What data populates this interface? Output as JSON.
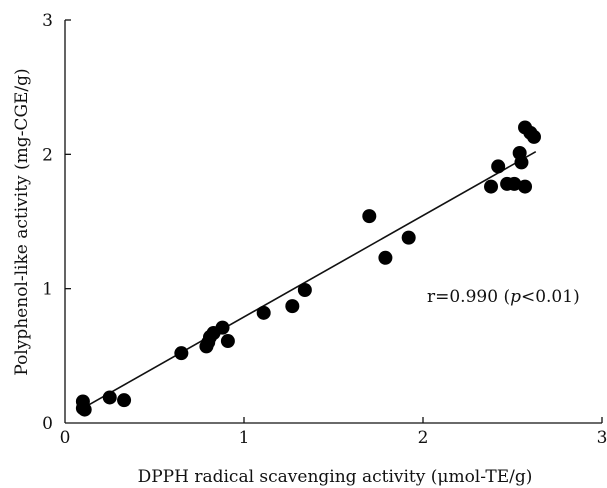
{
  "chart_data": {
    "type": "scatter",
    "xlabel": "DPPH radical scavenging activity (μmol-TE/g)",
    "ylabel": "Polyphenol-like activity (mg-CGE/g)",
    "xlim": [
      0,
      3
    ],
    "ylim": [
      0,
      3
    ],
    "xticks": [
      "0",
      "1",
      "2",
      "3"
    ],
    "yticks": [
      "0",
      "1",
      "2",
      "3"
    ],
    "grid": false,
    "annotation": {
      "prefix": "r=0.990 (",
      "p": "p",
      "suffix": "<0.01)"
    },
    "trendline": {
      "x": [
        0.1,
        2.63
      ],
      "y": [
        0.11,
        2.02
      ]
    },
    "points": [
      {
        "x": 0.1,
        "y": 0.16
      },
      {
        "x": 0.1,
        "y": 0.11
      },
      {
        "x": 0.11,
        "y": 0.1
      },
      {
        "x": 0.25,
        "y": 0.19
      },
      {
        "x": 0.33,
        "y": 0.17
      },
      {
        "x": 0.65,
        "y": 0.52
      },
      {
        "x": 0.79,
        "y": 0.57
      },
      {
        "x": 0.8,
        "y": 0.6
      },
      {
        "x": 0.81,
        "y": 0.64
      },
      {
        "x": 0.83,
        "y": 0.67
      },
      {
        "x": 0.88,
        "y": 0.71
      },
      {
        "x": 0.91,
        "y": 0.61
      },
      {
        "x": 1.11,
        "y": 0.82
      },
      {
        "x": 1.27,
        "y": 0.87
      },
      {
        "x": 1.34,
        "y": 0.99
      },
      {
        "x": 1.7,
        "y": 1.54
      },
      {
        "x": 1.79,
        "y": 1.23
      },
      {
        "x": 1.92,
        "y": 1.38
      },
      {
        "x": 2.38,
        "y": 1.76
      },
      {
        "x": 2.42,
        "y": 1.91
      },
      {
        "x": 2.47,
        "y": 1.78
      },
      {
        "x": 2.51,
        "y": 1.78
      },
      {
        "x": 2.54,
        "y": 2.01
      },
      {
        "x": 2.55,
        "y": 1.94
      },
      {
        "x": 2.57,
        "y": 1.76
      },
      {
        "x": 2.57,
        "y": 2.2
      },
      {
        "x": 2.6,
        "y": 2.16
      },
      {
        "x": 2.62,
        "y": 2.13
      }
    ]
  }
}
